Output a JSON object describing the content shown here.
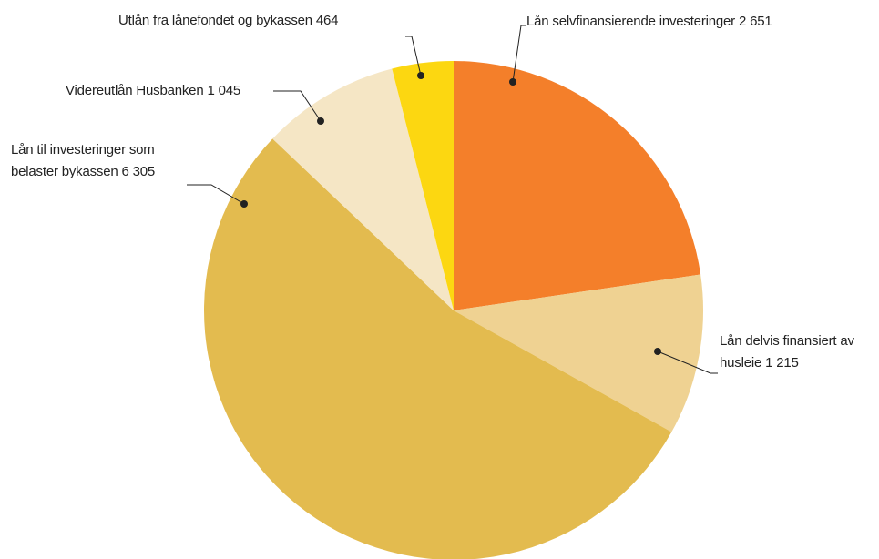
{
  "chart_data": {
    "type": "pie",
    "categories": [
      "Lån selvfinansierende investeringer",
      "Lån delvis finansiert av husleie",
      "Lån til investeringer som belaster bykassen",
      "Videreutlån Husbanken",
      "Utlån fra lånefondet og bykassen"
    ],
    "values": [
      2651,
      1215,
      6305,
      1045,
      464
    ],
    "value_labels": [
      "2 651",
      "1 215",
      "6 305",
      "1 045",
      "464"
    ],
    "colors": [
      "#f47f2a",
      "#efd292",
      "#e3bb4f",
      "#f5e6c5",
      "#fcd711"
    ]
  }
}
